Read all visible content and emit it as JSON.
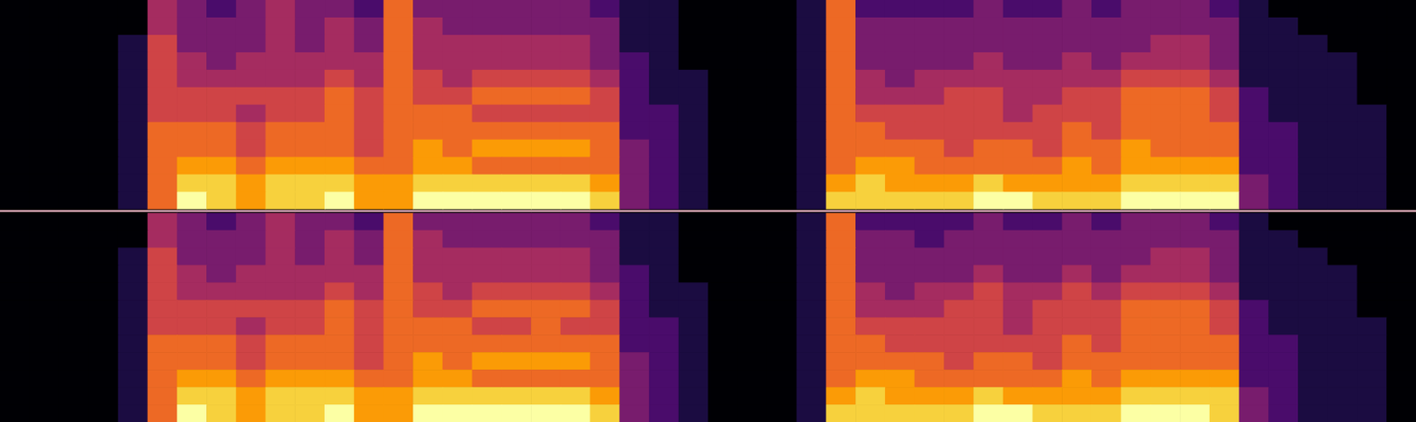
{
  "chart_data": [
    {
      "type": "heatmap",
      "tick_labels": false,
      "cells": [
        [
          0,
          0,
          0,
          0,
          0,
          4,
          3,
          2,
          3,
          4,
          3,
          3,
          2,
          6,
          3,
          3,
          3,
          3,
          3,
          3,
          2,
          1,
          1,
          0,
          0,
          0,
          0,
          1,
          6,
          2,
          2,
          2,
          2,
          3,
          2,
          2,
          3,
          2,
          3,
          3,
          3,
          2,
          1,
          0,
          0,
          0,
          0,
          0
        ],
        [
          0,
          0,
          0,
          0,
          0,
          4,
          3,
          3,
          3,
          4,
          3,
          4,
          3,
          6,
          4,
          3,
          3,
          3,
          3,
          3,
          3,
          1,
          1,
          0,
          0,
          0,
          0,
          1,
          6,
          3,
          3,
          3,
          3,
          3,
          3,
          3,
          3,
          3,
          3,
          3,
          3,
          3,
          1,
          1,
          0,
          0,
          0,
          0
        ],
        [
          0,
          0,
          0,
          0,
          1,
          5,
          3,
          3,
          3,
          4,
          3,
          4,
          3,
          6,
          4,
          4,
          4,
          4,
          4,
          4,
          3,
          1,
          1,
          0,
          0,
          0,
          0,
          1,
          6,
          3,
          3,
          3,
          3,
          3,
          3,
          3,
          3,
          3,
          3,
          4,
          4,
          3,
          1,
          1,
          1,
          0,
          0,
          0
        ],
        [
          0,
          0,
          0,
          0,
          1,
          5,
          4,
          3,
          4,
          4,
          4,
          4,
          4,
          6,
          4,
          4,
          4,
          4,
          4,
          4,
          3,
          2,
          1,
          0,
          0,
          0,
          0,
          1,
          6,
          3,
          3,
          3,
          3,
          4,
          3,
          3,
          4,
          3,
          4,
          4,
          4,
          3,
          1,
          1,
          1,
          1,
          0,
          0
        ],
        [
          0,
          0,
          0,
          0,
          1,
          5,
          4,
          4,
          4,
          4,
          4,
          5,
          4,
          6,
          5,
          4,
          5,
          5,
          5,
          5,
          4,
          2,
          1,
          1,
          0,
          0,
          0,
          1,
          6,
          4,
          3,
          4,
          4,
          4,
          4,
          4,
          4,
          4,
          5,
          5,
          5,
          4,
          1,
          1,
          1,
          1,
          0,
          0
        ],
        [
          0,
          0,
          0,
          0,
          1,
          5,
          5,
          5,
          5,
          5,
          5,
          6,
          5,
          6,
          5,
          5,
          6,
          6,
          6,
          6,
          5,
          2,
          1,
          1,
          0,
          0,
          0,
          1,
          6,
          4,
          4,
          4,
          5,
          5,
          4,
          4,
          5,
          5,
          6,
          6,
          6,
          5,
          2,
          1,
          1,
          1,
          0,
          0
        ],
        [
          0,
          0,
          0,
          0,
          1,
          5,
          5,
          5,
          4,
          5,
          5,
          6,
          5,
          6,
          6,
          6,
          5,
          5,
          5,
          5,
          5,
          2,
          2,
          1,
          0,
          0,
          0,
          1,
          6,
          5,
          5,
          5,
          5,
          5,
          4,
          5,
          5,
          5,
          6,
          6,
          6,
          5,
          2,
          1,
          1,
          1,
          1,
          0
        ],
        [
          0,
          0,
          0,
          0,
          1,
          6,
          6,
          6,
          5,
          6,
          6,
          6,
          5,
          6,
          6,
          6,
          6,
          6,
          6,
          6,
          6,
          2,
          2,
          1,
          0,
          0,
          0,
          1,
          6,
          6,
          5,
          5,
          5,
          5,
          5,
          5,
          6,
          5,
          6,
          6,
          6,
          6,
          2,
          2,
          1,
          1,
          1,
          0
        ],
        [
          0,
          0,
          0,
          0,
          1,
          6,
          6,
          6,
          5,
          6,
          6,
          6,
          5,
          6,
          7,
          6,
          7,
          7,
          7,
          7,
          6,
          3,
          2,
          1,
          0,
          0,
          0,
          1,
          6,
          6,
          6,
          6,
          5,
          6,
          6,
          5,
          6,
          6,
          7,
          6,
          6,
          6,
          2,
          2,
          1,
          1,
          1,
          0
        ],
        [
          0,
          0,
          0,
          0,
          1,
          6,
          7,
          7,
          6,
          7,
          7,
          7,
          6,
          6,
          7,
          7,
          6,
          6,
          6,
          6,
          6,
          3,
          2,
          1,
          0,
          0,
          0,
          1,
          6,
          7,
          7,
          6,
          6,
          6,
          6,
          6,
          7,
          6,
          7,
          7,
          7,
          7,
          2,
          2,
          1,
          1,
          1,
          0
        ],
        [
          0,
          0,
          0,
          0,
          1,
          6,
          8,
          8,
          7,
          8,
          8,
          8,
          7,
          7,
          8,
          8,
          8,
          8,
          8,
          8,
          7,
          3,
          2,
          1,
          0,
          0,
          0,
          1,
          7,
          8,
          7,
          7,
          7,
          8,
          7,
          7,
          7,
          7,
          8,
          8,
          8,
          8,
          3,
          2,
          1,
          1,
          1,
          0
        ],
        [
          0,
          0,
          0,
          0,
          1,
          6,
          9,
          8,
          7,
          8,
          8,
          9,
          7,
          7,
          9,
          9,
          9,
          9,
          9,
          9,
          8,
          3,
          2,
          1,
          0,
          0,
          0,
          1,
          8,
          8,
          8,
          8,
          8,
          9,
          9,
          8,
          8,
          8,
          9,
          9,
          9,
          9,
          3,
          2,
          1,
          1,
          1,
          0
        ]
      ]
    },
    {
      "type": "heatmap",
      "tick_labels": false,
      "cells": [
        [
          0,
          0,
          0,
          0,
          0,
          4,
          3,
          2,
          3,
          4,
          3,
          3,
          2,
          6,
          3,
          3,
          3,
          3,
          3,
          3,
          2,
          1,
          1,
          0,
          0,
          0,
          0,
          1,
          6,
          2,
          2,
          2,
          2,
          3,
          2,
          2,
          3,
          2,
          3,
          3,
          3,
          2,
          1,
          0,
          0,
          0,
          0,
          0
        ],
        [
          0,
          0,
          0,
          0,
          0,
          4,
          3,
          3,
          3,
          4,
          3,
          4,
          3,
          6,
          4,
          3,
          3,
          3,
          3,
          3,
          3,
          1,
          1,
          0,
          0,
          0,
          0,
          1,
          6,
          3,
          3,
          2,
          3,
          3,
          3,
          3,
          3,
          3,
          3,
          3,
          3,
          3,
          1,
          1,
          0,
          0,
          0,
          0
        ],
        [
          0,
          0,
          0,
          0,
          1,
          5,
          3,
          3,
          3,
          4,
          3,
          4,
          3,
          6,
          4,
          4,
          4,
          4,
          4,
          4,
          3,
          1,
          1,
          0,
          0,
          0,
          0,
          1,
          6,
          3,
          3,
          3,
          3,
          3,
          3,
          3,
          3,
          3,
          3,
          4,
          4,
          3,
          1,
          1,
          1,
          0,
          0,
          0
        ],
        [
          0,
          0,
          0,
          0,
          1,
          5,
          4,
          3,
          4,
          4,
          4,
          4,
          4,
          6,
          4,
          4,
          4,
          4,
          4,
          4,
          3,
          2,
          1,
          0,
          0,
          0,
          0,
          1,
          6,
          3,
          3,
          3,
          3,
          4,
          3,
          3,
          4,
          3,
          4,
          4,
          4,
          3,
          1,
          1,
          1,
          1,
          0,
          0
        ],
        [
          0,
          0,
          0,
          0,
          1,
          5,
          4,
          4,
          4,
          4,
          4,
          5,
          4,
          6,
          5,
          4,
          5,
          5,
          5,
          5,
          4,
          2,
          1,
          1,
          0,
          0,
          0,
          1,
          6,
          4,
          3,
          4,
          4,
          5,
          4,
          4,
          5,
          4,
          5,
          5,
          5,
          4,
          1,
          1,
          1,
          1,
          0,
          0
        ],
        [
          0,
          0,
          0,
          0,
          1,
          5,
          5,
          5,
          5,
          5,
          5,
          6,
          5,
          6,
          5,
          5,
          6,
          6,
          6,
          6,
          5,
          2,
          1,
          1,
          0,
          0,
          0,
          1,
          6,
          4,
          4,
          4,
          5,
          5,
          4,
          5,
          5,
          5,
          6,
          6,
          6,
          5,
          2,
          1,
          1,
          1,
          0,
          0
        ],
        [
          0,
          0,
          0,
          0,
          1,
          5,
          5,
          5,
          4,
          5,
          5,
          6,
          5,
          6,
          6,
          6,
          5,
          5,
          6,
          5,
          5,
          2,
          2,
          1,
          0,
          0,
          0,
          1,
          6,
          5,
          5,
          5,
          5,
          5,
          4,
          5,
          5,
          5,
          6,
          6,
          6,
          5,
          2,
          1,
          1,
          1,
          1,
          0
        ],
        [
          0,
          0,
          0,
          0,
          1,
          6,
          6,
          6,
          5,
          6,
          6,
          6,
          5,
          6,
          6,
          6,
          6,
          6,
          6,
          6,
          6,
          2,
          2,
          1,
          0,
          0,
          0,
          1,
          6,
          6,
          5,
          5,
          5,
          5,
          5,
          5,
          6,
          5,
          6,
          6,
          6,
          6,
          2,
          2,
          1,
          1,
          1,
          0
        ],
        [
          0,
          0,
          0,
          0,
          1,
          6,
          6,
          6,
          5,
          6,
          6,
          6,
          5,
          6,
          7,
          6,
          7,
          7,
          7,
          7,
          6,
          3,
          2,
          1,
          0,
          0,
          0,
          1,
          6,
          6,
          6,
          6,
          5,
          6,
          6,
          5,
          6,
          6,
          6,
          6,
          6,
          6,
          2,
          2,
          1,
          1,
          1,
          0
        ],
        [
          0,
          0,
          0,
          0,
          1,
          6,
          7,
          7,
          6,
          7,
          7,
          7,
          6,
          6,
          7,
          7,
          6,
          6,
          6,
          6,
          6,
          3,
          2,
          1,
          0,
          0,
          0,
          1,
          6,
          7,
          7,
          6,
          6,
          6,
          6,
          6,
          7,
          6,
          7,
          7,
          7,
          7,
          2,
          2,
          1,
          1,
          1,
          0
        ],
        [
          0,
          0,
          0,
          0,
          1,
          6,
          8,
          8,
          7,
          8,
          8,
          8,
          7,
          7,
          8,
          8,
          8,
          8,
          8,
          8,
          7,
          3,
          2,
          1,
          0,
          0,
          0,
          1,
          7,
          8,
          7,
          7,
          7,
          8,
          7,
          7,
          7,
          7,
          8,
          8,
          8,
          8,
          3,
          2,
          1,
          1,
          1,
          0
        ],
        [
          0,
          0,
          0,
          0,
          1,
          6,
          9,
          8,
          7,
          8,
          8,
          9,
          7,
          7,
          9,
          9,
          9,
          9,
          9,
          9,
          8,
          3,
          2,
          1,
          0,
          0,
          0,
          1,
          8,
          8,
          8,
          8,
          8,
          9,
          9,
          8,
          8,
          8,
          9,
          9,
          9,
          8,
          3,
          2,
          1,
          1,
          1,
          0
        ]
      ]
    }
  ]
}
